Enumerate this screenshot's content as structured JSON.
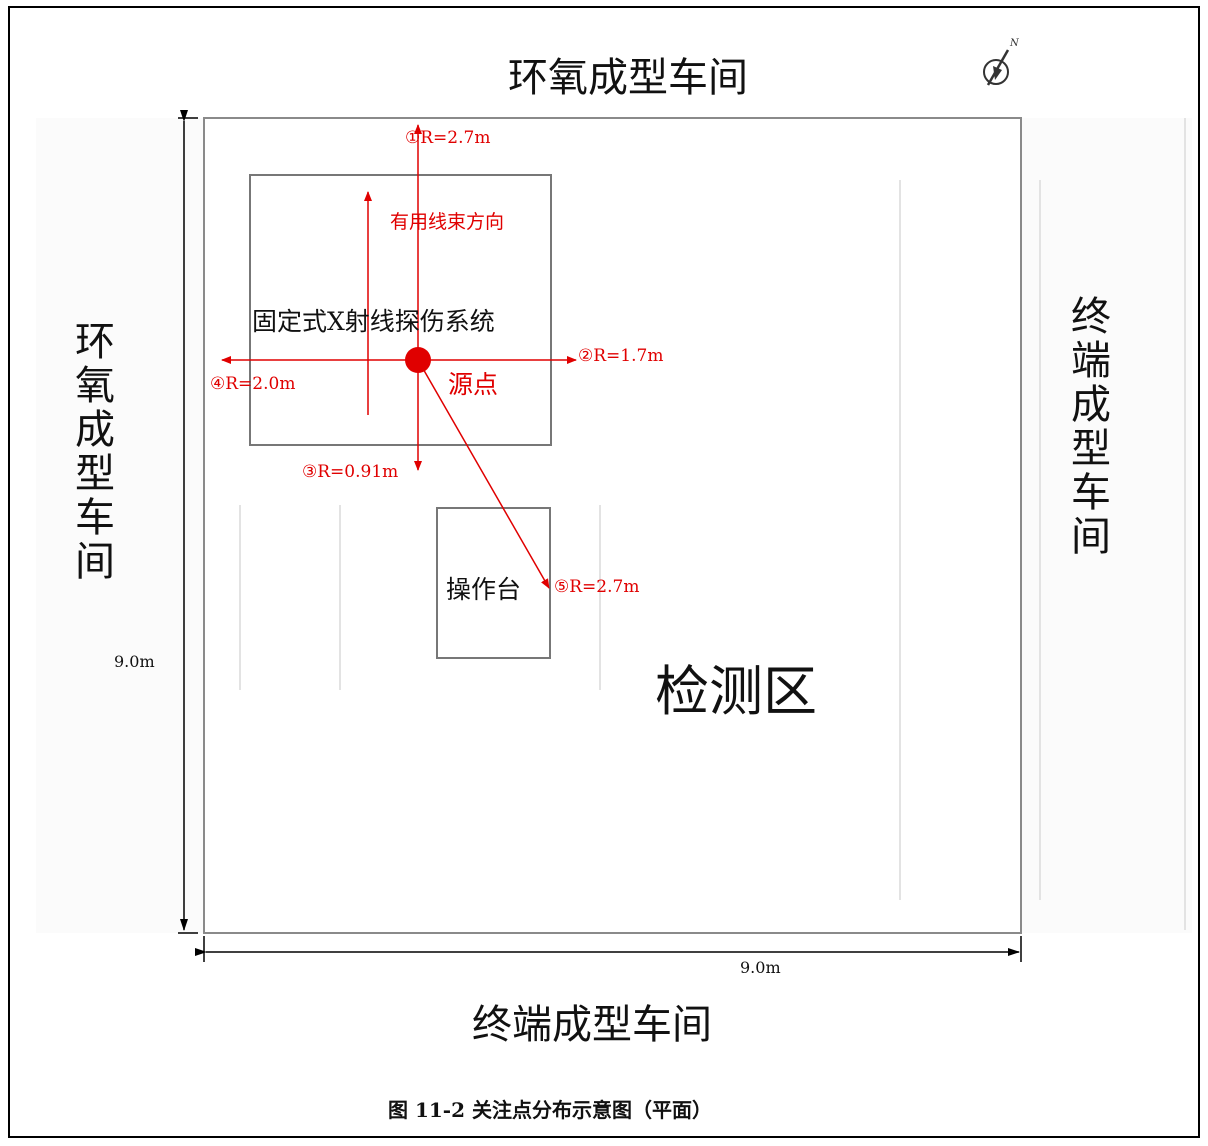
{
  "figure": {
    "caption": "图 11-2  关注点分布示意图（平面）"
  },
  "surroundings": {
    "top": "环氧成型车间",
    "left": "环氧成型车间",
    "right": "终端成型车间",
    "bottom": "终端成型车间"
  },
  "area": {
    "label": "检测区",
    "width_label": "9.0m",
    "height_label": "9.0m"
  },
  "equipment": {
    "system_label": "固定式X射线探伤系统",
    "console_label": "操作台"
  },
  "source": {
    "label": "源点",
    "color": "#e00000"
  },
  "beam": {
    "label": "有用线束方向"
  },
  "points": [
    {
      "id": "1",
      "label": "①R=2.7m",
      "distance_m": 2.7,
      "direction": "north"
    },
    {
      "id": "2",
      "label": "②R=1.7m",
      "distance_m": 1.7,
      "direction": "east"
    },
    {
      "id": "3",
      "label": "③R=0.91m",
      "distance_m": 0.91,
      "direction": "south"
    },
    {
      "id": "4",
      "label": "④R=2.0m",
      "distance_m": 2.0,
      "direction": "west"
    },
    {
      "id": "5",
      "label": "⑤R=2.7m",
      "distance_m": 2.7,
      "direction": "south-east (toward console)"
    }
  ],
  "icons": {
    "compass": "north-arrow-icon"
  }
}
